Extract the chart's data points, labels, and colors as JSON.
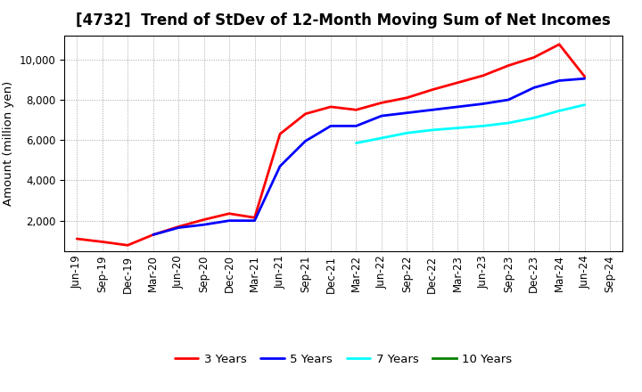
{
  "title": "[4732]  Trend of StDev of 12-Month Moving Sum of Net Incomes",
  "ylabel": "Amount (million yen)",
  "x_labels": [
    "Jun-19",
    "Sep-19",
    "Dec-19",
    "Mar-20",
    "Jun-20",
    "Sep-20",
    "Dec-20",
    "Mar-21",
    "Jun-21",
    "Sep-21",
    "Dec-21",
    "Mar-22",
    "Jun-22",
    "Sep-22",
    "Dec-22",
    "Mar-23",
    "Jun-23",
    "Sep-23",
    "Dec-23",
    "Mar-24",
    "Jun-24",
    "Sep-24"
  ],
  "series": {
    "3 Years": {
      "color": "#FF0000",
      "data_x": [
        0,
        1,
        2,
        3,
        4,
        5,
        6,
        7,
        8,
        9,
        10,
        11,
        12,
        13,
        14,
        15,
        16,
        17,
        18,
        19,
        20
      ],
      "data_y": [
        1100,
        950,
        780,
        1300,
        1700,
        2050,
        2350,
        2150,
        6300,
        7300,
        7650,
        7500,
        7850,
        8100,
        8500,
        8850,
        9200,
        9700,
        10100,
        10750,
        9150
      ]
    },
    "5 Years": {
      "color": "#0000FF",
      "data_x": [
        3,
        4,
        5,
        6,
        7,
        8,
        9,
        10,
        11,
        12,
        13,
        14,
        15,
        16,
        17,
        18,
        19,
        20
      ],
      "data_y": [
        1300,
        1650,
        1800,
        2000,
        2000,
        4700,
        5950,
        6700,
        6700,
        7200,
        7350,
        7500,
        7650,
        7800,
        8000,
        8600,
        8950,
        9050
      ]
    },
    "7 Years": {
      "color": "#00FFFF",
      "data_x": [
        11,
        12,
        13,
        14,
        15,
        16,
        17,
        18,
        19,
        20
      ],
      "data_y": [
        5850,
        6100,
        6350,
        6500,
        6600,
        6700,
        6850,
        7100,
        7450,
        7750
      ]
    },
    "10 Years": {
      "color": "#008000",
      "data_x": [],
      "data_y": []
    }
  },
  "ylim_min": 500,
  "ylim_max": 11200,
  "yticks": [
    2000,
    4000,
    6000,
    8000,
    10000
  ],
  "background_color": "#FFFFFF",
  "grid_color": "#999999",
  "title_fontsize": 12,
  "label_fontsize": 9.5,
  "tick_fontsize": 8.5,
  "legend_fontsize": 9.5,
  "linewidth": 2.0
}
